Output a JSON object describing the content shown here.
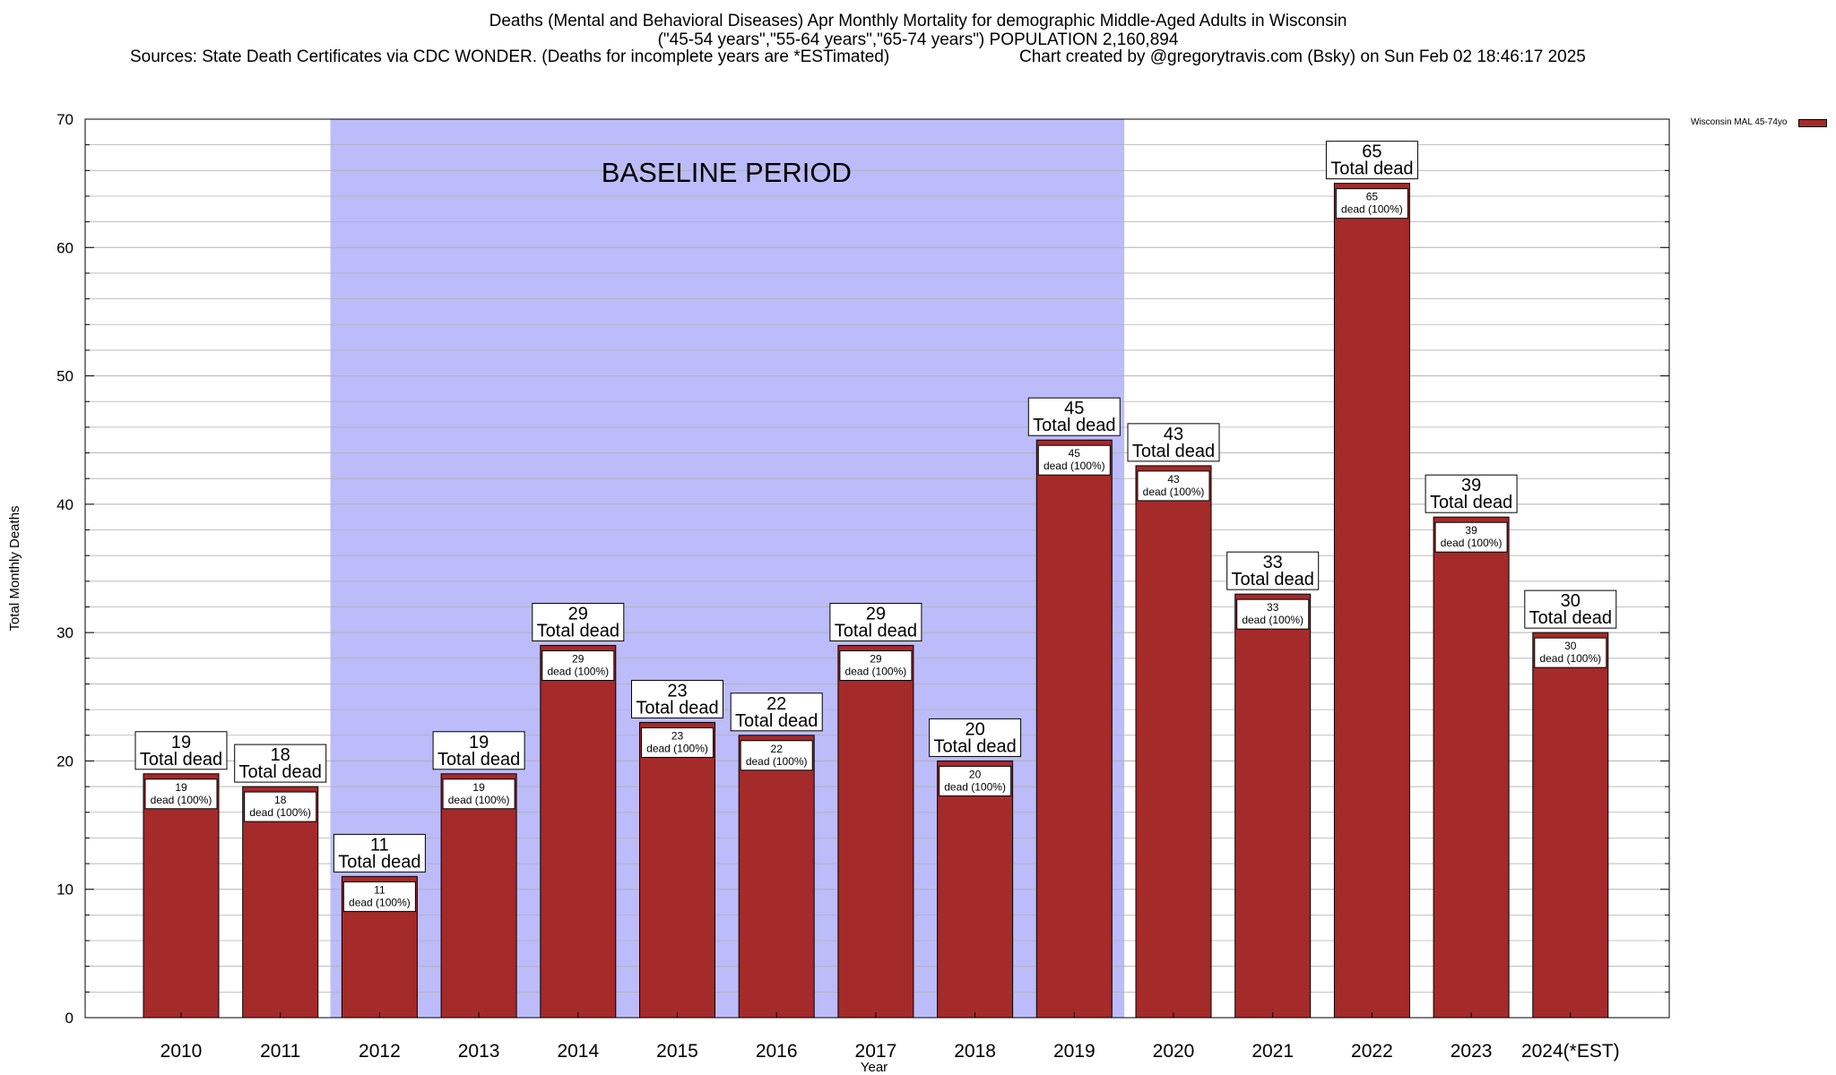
{
  "title_lines": [
    "Deaths (Mental and Behavioral Diseases) Apr Monthly Mortality for demographic Middle-Aged Adults in Wisconsin",
    "(\"45-54 years\",\"55-64 years\",\"65-74 years\") POPULATION 2,160,894",
    "Sources: State Death Certificates via CDC WONDER. (Deaths for incomplete years are *ESTimated)",
    "Chart created by @gregorytravis.com (Bsky) on Sun Feb 02 18:46:17 2025"
  ],
  "legend_label": "Wisconsin MAL 45-74yo",
  "colors": {
    "bar": "#a52a2a",
    "baseline": "#bcbcfa",
    "grid": "#b0b0b0"
  },
  "chart_data": {
    "type": "bar",
    "xlabel": "Year",
    "ylabel": "Total Monthly Deaths",
    "ylim": [
      0,
      70
    ],
    "yticks": [
      0,
      10,
      20,
      30,
      40,
      50,
      60,
      70
    ],
    "grid": true,
    "legend_position": "top-right",
    "categories": [
      "2010",
      "2011",
      "2012",
      "2013",
      "2014",
      "2015",
      "2016",
      "2017",
      "2018",
      "2019",
      "2020",
      "2021",
      "2022",
      "2023",
      "2024(*EST)"
    ],
    "series": [
      {
        "name": "Wisconsin MAL 45-74yo",
        "values": [
          19,
          18,
          11,
          19,
          29,
          23,
          22,
          29,
          20,
          45,
          43,
          33,
          65,
          39,
          30
        ]
      }
    ],
    "top_label_suffix": "Total dead",
    "inner_label_suffix": "dead (100%)",
    "baseline_span": [
      "2012",
      "2019"
    ],
    "baseline_label": "BASELINE PERIOD"
  }
}
